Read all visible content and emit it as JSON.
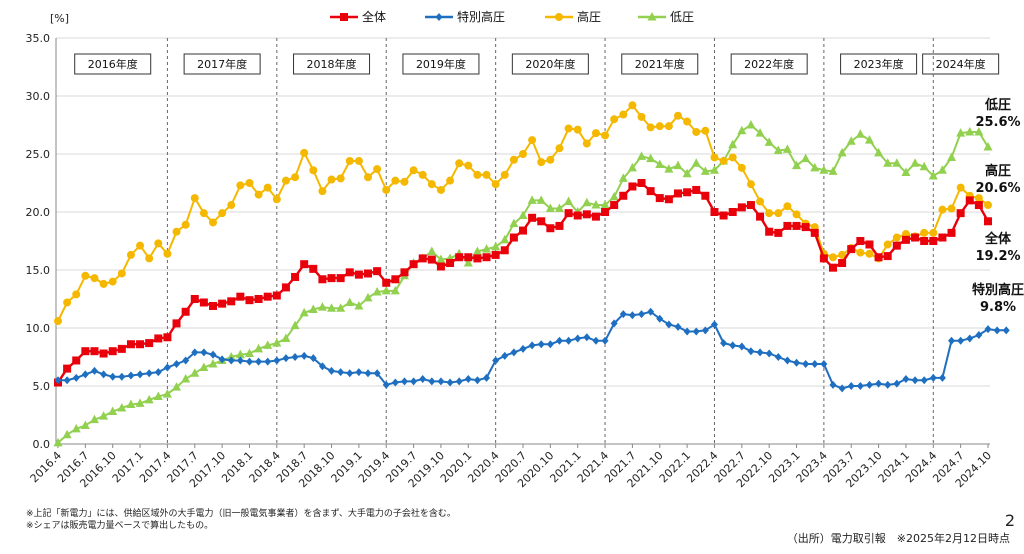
{
  "chart_data": {
    "type": "line",
    "ylabel": "[%]",
    "ylim": [
      0,
      35
    ],
    "yticks": [
      "0.0",
      "5.0",
      "10.0",
      "15.0",
      "20.0",
      "25.0",
      "30.0",
      "35.0"
    ],
    "x_tick_labels": [
      "2016.4",
      "2016.7",
      "2016.10",
      "2017.1",
      "2017.4",
      "2017.7",
      "2017.10",
      "2018.1",
      "2018.4",
      "2018.7",
      "2018.10",
      "2019.1",
      "2019.4",
      "2019.7",
      "2019.10",
      "2020.1",
      "2020.4",
      "2020.7",
      "2020.10",
      "2021.1",
      "2021.4",
      "2021.7",
      "2021.10",
      "2022.1",
      "2022.4",
      "2022.7",
      "2022.10",
      "2023.1",
      "2023.4",
      "2023.7",
      "2023.10",
      "2024.1",
      "2024.4",
      "2024.7",
      "2024.10"
    ],
    "fiscal_years": [
      "2016年度",
      "2017年度",
      "2018年度",
      "2019年度",
      "2020年度",
      "2021年度",
      "2022年度",
      "2023年度",
      "2024年度"
    ],
    "series": [
      {
        "name": "全体",
        "color": "#e8000b",
        "marker": "square",
        "values": [
          5.3,
          6.5,
          7.2,
          8.0,
          8.0,
          7.8,
          8.0,
          8.2,
          8.6,
          8.6,
          8.7,
          9.1,
          9.2,
          10.4,
          11.4,
          12.5,
          12.2,
          11.9,
          12.1,
          12.3,
          12.7,
          12.4,
          12.5,
          12.7,
          12.8,
          13.5,
          14.4,
          15.5,
          15.1,
          14.2,
          14.3,
          14.3,
          14.8,
          14.6,
          14.7,
          14.9,
          13.9,
          14.2,
          14.8,
          15.5,
          16.0,
          15.9,
          15.3,
          15.6,
          16.1,
          16.1,
          16.0,
          16.1,
          16.3,
          16.7,
          17.8,
          18.4,
          19.5,
          19.2,
          18.6,
          18.8,
          19.9,
          19.7,
          19.8,
          19.6,
          20.0,
          20.6,
          21.4,
          22.2,
          22.5,
          21.8,
          21.2,
          21.1,
          21.6,
          21.7,
          21.9,
          21.4,
          20.0,
          19.7,
          20.0,
          20.4,
          20.6,
          19.6,
          18.3,
          18.2,
          18.8,
          18.8,
          18.7,
          18.2,
          16.0,
          15.2,
          15.6,
          16.8,
          17.5,
          17.2,
          16.1,
          16.2,
          17.1,
          17.6,
          17.8,
          17.5,
          17.5,
          17.8,
          18.2,
          19.9,
          21.0,
          20.6,
          19.2
        ]
      },
      {
        "name": "特別高圧",
        "color": "#1f6fc1",
        "marker": "diamond",
        "values": [
          5.5,
          5.5,
          5.7,
          6.0,
          6.3,
          6.0,
          5.8,
          5.8,
          5.9,
          6.0,
          6.1,
          6.2,
          6.6,
          6.9,
          7.2,
          7.9,
          7.9,
          7.7,
          7.3,
          7.2,
          7.2,
          7.1,
          7.1,
          7.1,
          7.2,
          7.4,
          7.5,
          7.6,
          7.4,
          6.7,
          6.3,
          6.2,
          6.1,
          6.2,
          6.1,
          6.1,
          5.1,
          5.3,
          5.4,
          5.4,
          5.6,
          5.4,
          5.4,
          5.3,
          5.4,
          5.6,
          5.5,
          5.7,
          7.2,
          7.6,
          7.9,
          8.2,
          8.5,
          8.6,
          8.6,
          8.9,
          8.9,
          9.1,
          9.2,
          8.9,
          8.9,
          10.4,
          11.2,
          11.1,
          11.2,
          11.4,
          10.8,
          10.3,
          10.1,
          9.7,
          9.7,
          9.8,
          10.3,
          8.7,
          8.5,
          8.4,
          8.0,
          7.9,
          7.8,
          7.5,
          7.2,
          7.0,
          6.9,
          6.9,
          6.9,
          5.1,
          4.8,
          5.0,
          5.0,
          5.1,
          5.2,
          5.1,
          5.2,
          5.6,
          5.5,
          5.5,
          5.7,
          5.7,
          8.9,
          8.9,
          9.1,
          9.4,
          9.9,
          9.8,
          9.8
        ]
      },
      {
        "name": "高圧",
        "color": "#f5b800",
        "marker": "circle",
        "values": [
          10.6,
          12.2,
          12.9,
          14.5,
          14.3,
          13.8,
          14.0,
          14.7,
          16.3,
          17.1,
          16.0,
          17.3,
          16.4,
          18.3,
          18.9,
          21.2,
          19.9,
          19.1,
          19.9,
          20.6,
          22.3,
          22.5,
          21.5,
          22.1,
          21.1,
          22.7,
          23.0,
          25.1,
          23.6,
          21.8,
          22.8,
          22.9,
          24.4,
          24.4,
          23.0,
          23.7,
          21.9,
          22.7,
          22.6,
          23.6,
          23.2,
          22.4,
          21.9,
          22.7,
          24.2,
          24.0,
          23.2,
          23.2,
          22.4,
          23.2,
          24.5,
          25.0,
          26.2,
          24.3,
          24.5,
          25.5,
          27.2,
          27.1,
          25.9,
          26.8,
          26.6,
          28.0,
          28.4,
          29.2,
          28.2,
          27.3,
          27.4,
          27.4,
          28.3,
          27.8,
          26.9,
          27.0,
          24.7,
          24.4,
          24.7,
          23.8,
          22.4,
          20.9,
          19.9,
          19.9,
          20.5,
          19.8,
          19.0,
          18.7,
          16.4,
          16.1,
          16.3,
          16.9,
          16.5,
          16.4,
          16.0,
          17.2,
          17.8,
          18.1,
          17.9,
          18.2,
          18.2,
          20.2,
          20.3,
          22.1,
          21.4,
          21.2,
          20.6
        ]
      },
      {
        "name": "低圧",
        "color": "#92d050",
        "marker": "triangle",
        "values": [
          0.1,
          0.8,
          1.3,
          1.6,
          2.1,
          2.4,
          2.8,
          3.1,
          3.4,
          3.5,
          3.8,
          4.1,
          4.3,
          4.9,
          5.6,
          6.1,
          6.6,
          6.9,
          7.2,
          7.5,
          7.7,
          7.8,
          8.2,
          8.5,
          8.7,
          9.1,
          10.2,
          11.3,
          11.6,
          11.8,
          11.7,
          11.7,
          12.2,
          11.9,
          12.6,
          13.1,
          13.2,
          13.2,
          14.5,
          15.6,
          16.0,
          16.6,
          15.9,
          16.0,
          16.4,
          15.6,
          16.6,
          16.8,
          17.0,
          17.6,
          19.0,
          19.7,
          21.0,
          21.0,
          20.3,
          20.3,
          20.9,
          20.0,
          20.8,
          20.6,
          20.6,
          21.3,
          22.9,
          23.8,
          24.8,
          24.6,
          24.1,
          23.7,
          24.0,
          23.3,
          24.2,
          23.5,
          23.6,
          24.4,
          25.8,
          27.0,
          27.5,
          26.8,
          26.0,
          25.3,
          25.4,
          24.0,
          24.6,
          23.8,
          23.6,
          23.5,
          25.1,
          26.1,
          26.7,
          26.2,
          25.1,
          24.2,
          24.2,
          23.4,
          24.2,
          23.9,
          23.1,
          23.6,
          24.7,
          26.8,
          26.9,
          26.9,
          25.6
        ]
      }
    ],
    "annotations": [
      {
        "name": "低圧",
        "value": "25.6%"
      },
      {
        "name": "高圧",
        "value": "20.6%"
      },
      {
        "name": "全体",
        "value": "19.2%"
      },
      {
        "name": "特別高圧",
        "value": "9.8%"
      }
    ]
  },
  "footnotes": [
    "※上記「新電力」には、供給区域外の大手電力（旧一般電気事業者）を含まず、大手電力の子会社を含む。",
    "※シェアは販売電力量ベースで算出したもの。"
  ],
  "source": "（出所）電力取引報　※2025年2月12日時点",
  "page_number": "2"
}
